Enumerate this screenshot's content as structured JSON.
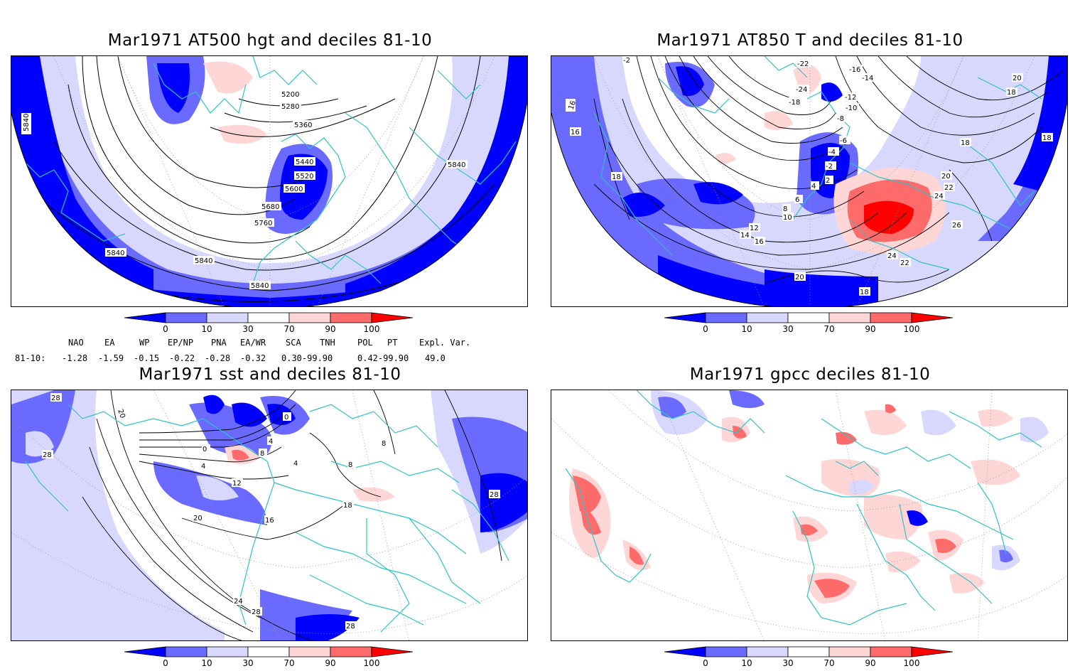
{
  "panels": [
    {
      "id": "hgt500",
      "title": "Mar1971 AT500 hgt and deciles 81-10",
      "contour_labels": [
        "5200",
        "5280",
        "5360",
        "5440",
        "5520",
        "5600",
        "5680",
        "5760",
        "5840",
        "5840",
        "5840",
        "5840",
        "5840"
      ]
    },
    {
      "id": "t850",
      "title": "Mar1971 AT850 T and deciles 81-10",
      "contour_labels": [
        "-22",
        "-16",
        "-14",
        "-24",
        "-18",
        "-12",
        "-10",
        "-8",
        "-6",
        "-4",
        "-2",
        "2",
        "4",
        "6",
        "8",
        "10",
        "12",
        "14",
        "16",
        "16",
        "18",
        "18",
        "18",
        "20",
        "20",
        "22",
        "24",
        "26",
        "24",
        "22",
        "20",
        "18",
        "16",
        "-2",
        "18"
      ]
    },
    {
      "id": "sst",
      "title": "Mar1971 sst and deciles 81-10",
      "contour_labels": [
        "28",
        "28",
        "20",
        "0",
        "4",
        "8",
        "12",
        "16",
        "20",
        "24",
        "28",
        "28",
        "18",
        "8",
        "4",
        "0",
        "28",
        "4",
        "8"
      ]
    },
    {
      "id": "gpcc",
      "title": "Mar1971 gpcc deciles 81-10",
      "contour_labels": []
    }
  ],
  "colorbar": {
    "ticks": [
      "0",
      "10",
      "30",
      "70",
      "90",
      "100"
    ],
    "colors": [
      "#0000ff",
      "#6a6aff",
      "#d8d8ff",
      "#ffffff",
      "#ffd6d6",
      "#ff6a6a",
      "#ff0000"
    ]
  },
  "indices": {
    "headers": [
      "NAO",
      "EA",
      "WP",
      "EP/NP",
      "PNA",
      "EA/WR",
      "SCA",
      "TNH",
      "POL",
      "PT",
      "Expl. Var."
    ],
    "row_label": "81-10:",
    "values": [
      "-1.28",
      "-1.59",
      "-0.15",
      "-0.22",
      "-0.28",
      "-0.32",
      "0.30-99.90",
      "0.42-99.90",
      "49.0"
    ]
  },
  "colors": {
    "coast": "#2ec4c4",
    "contour": "#000000",
    "dot": "#999999"
  }
}
